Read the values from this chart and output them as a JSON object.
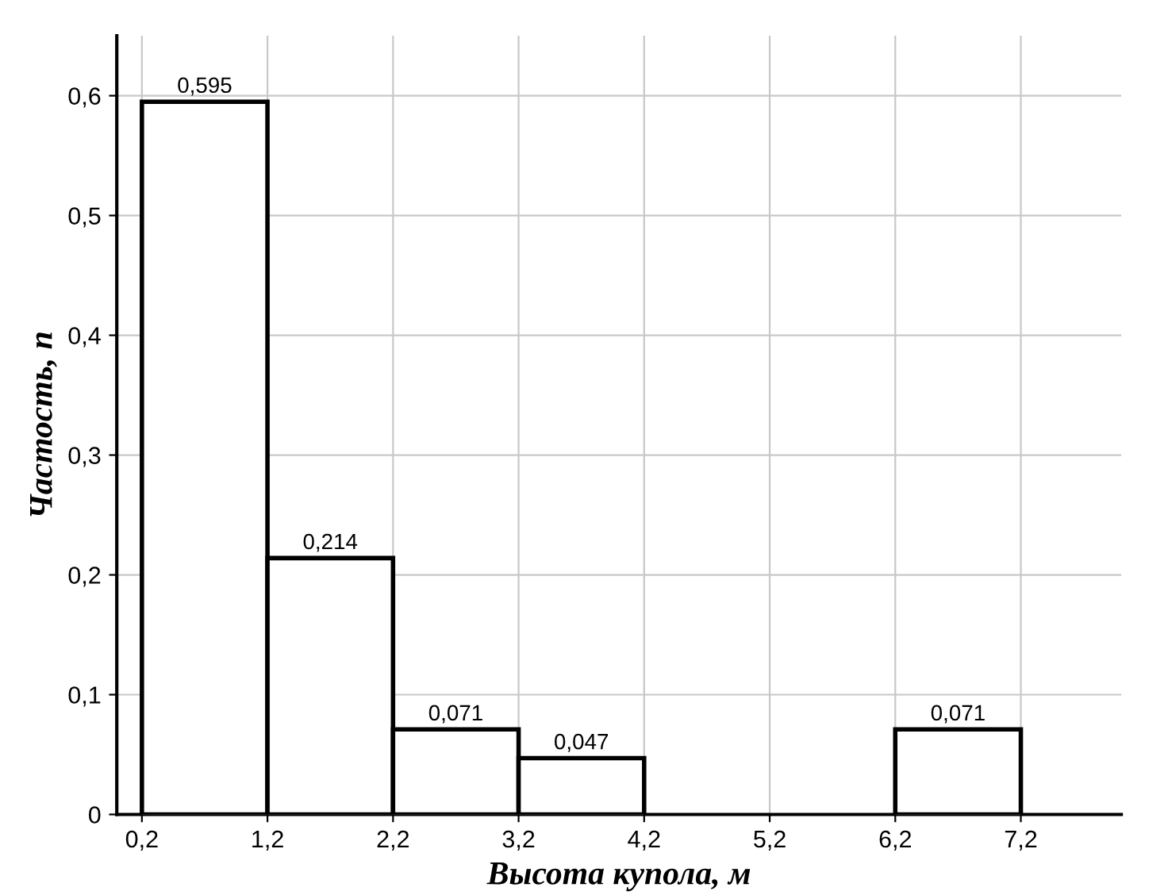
{
  "chart_data": {
    "type": "histogram",
    "xlabel": "Высота купола, м",
    "ylabel": "Частость, n",
    "bins": [
      0.2,
      1.2,
      2.2,
      3.2,
      4.2,
      5.2,
      6.2,
      7.2
    ],
    "values": [
      0.595,
      0.214,
      0.071,
      0.047,
      0,
      0,
      0.071
    ],
    "value_labels": [
      "0,595",
      "0,214",
      "0,071",
      "0,047",
      null,
      null,
      "0,071"
    ],
    "color": "#ffffff",
    "xlim": [
      0,
      8
    ],
    "ylim": [
      0,
      0.65
    ],
    "xticks": [
      {
        "value": 0.2,
        "label": "0,2"
      },
      {
        "value": 1.2,
        "label": "1,2"
      },
      {
        "value": 2.2,
        "label": "2,2"
      },
      {
        "value": 3.2,
        "label": "3,2"
      },
      {
        "value": 4.2,
        "label": "4,2"
      },
      {
        "value": 5.2,
        "label": "5,2"
      },
      {
        "value": 6.2,
        "label": "6,2"
      },
      {
        "value": 7.2,
        "label": "7,2"
      }
    ],
    "yticks": [
      0,
      {
        "value": 0.1,
        "label": "0,1"
      },
      {
        "value": 0.2,
        "label": "0,2"
      },
      {
        "value": 0.3,
        "label": "0,3"
      },
      {
        "value": 0.4,
        "label": "0,4"
      },
      {
        "value": 0.5,
        "label": "0,5"
      },
      {
        "value": 0.6,
        "label": "0,6"
      }
    ],
    "grid": true
  }
}
